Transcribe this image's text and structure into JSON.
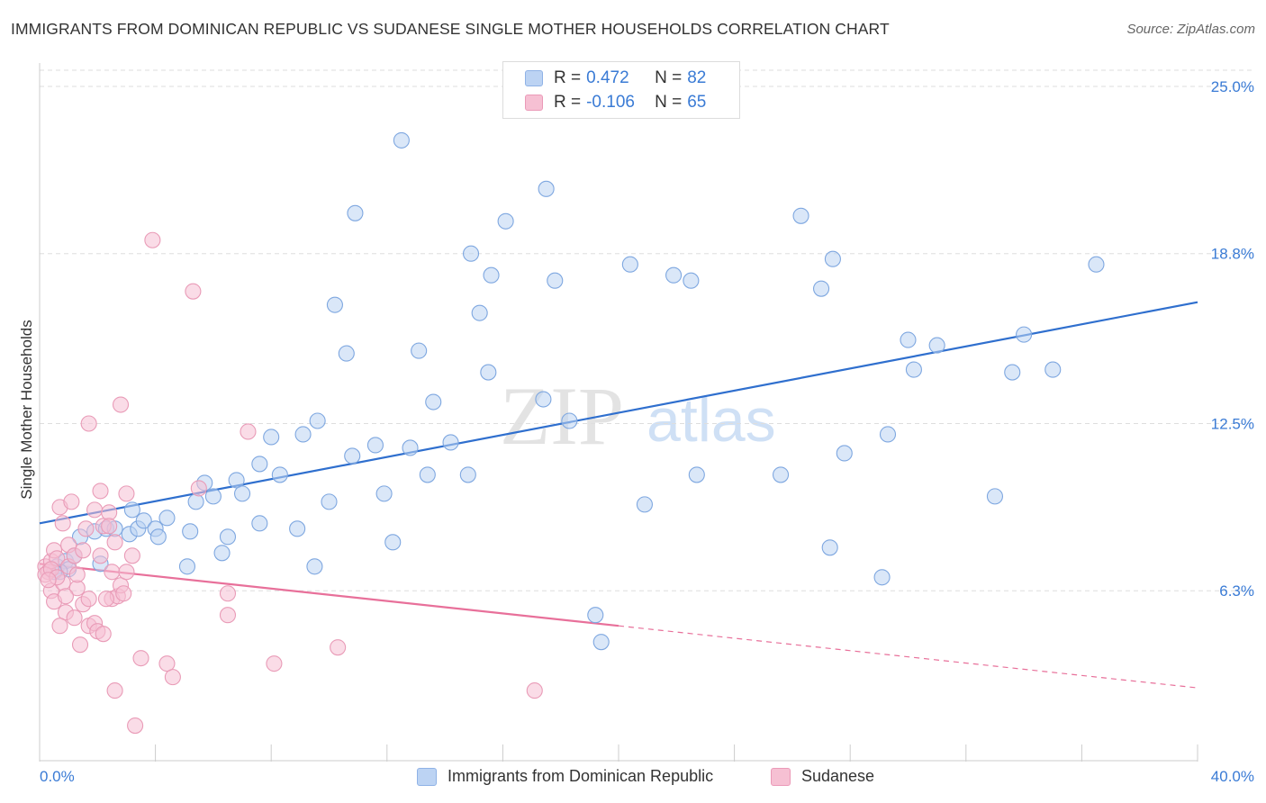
{
  "title": "IMMIGRANTS FROM DOMINICAN REPUBLIC VS SUDANESE SINGLE MOTHER HOUSEHOLDS CORRELATION CHART",
  "source": "Source: ZipAtlas.com",
  "watermark": {
    "zip": "ZIP",
    "atlas": "atlas"
  },
  "colors": {
    "blue": "#3a7bd5",
    "blue_fill": "#bcd3f3",
    "pink": "#e8709a",
    "pink_fill": "#f6c0d3",
    "grid": "#dddddd"
  },
  "legend": {
    "r_label": "R =",
    "n_label": "N =",
    "rows": [
      {
        "r": "0.472",
        "n": "82"
      },
      {
        "r": "-0.106",
        "n": "65"
      }
    ]
  },
  "chart_data": {
    "type": "scatter",
    "xlabel": "",
    "ylabel": "Single Mother Households",
    "x_tick_labels": [
      "0.0%",
      "40.0%"
    ],
    "y_tick_labels": [
      "6.3%",
      "12.5%",
      "18.8%",
      "25.0%"
    ],
    "xlim": [
      0,
      40
    ],
    "ylim": [
      0,
      25.6
    ],
    "yticks": [
      6.3,
      12.5,
      18.8,
      25.0
    ],
    "grid": true,
    "legend_position": "top-center",
    "series": [
      {
        "name": "Immigrants from Dominican Republic",
        "color": "#3a7bd5",
        "R": 0.472,
        "N": 82,
        "trend": {
          "x": [
            0,
            40
          ],
          "y": [
            8.8,
            17.0
          ]
        },
        "points": [
          [
            0.6,
            7.2
          ],
          [
            0.9,
            7.4
          ],
          [
            1.0,
            7.1
          ],
          [
            0.7,
            7.0
          ],
          [
            1.2,
            7.6
          ],
          [
            1.4,
            8.3
          ],
          [
            1.9,
            8.5
          ],
          [
            2.1,
            7.3
          ],
          [
            2.3,
            8.6
          ],
          [
            2.6,
            8.6
          ],
          [
            3.1,
            8.4
          ],
          [
            3.4,
            8.6
          ],
          [
            3.2,
            9.3
          ],
          [
            3.6,
            8.9
          ],
          [
            4.0,
            8.6
          ],
          [
            4.4,
            9.0
          ],
          [
            4.1,
            8.3
          ],
          [
            5.1,
            7.2
          ],
          [
            5.2,
            8.5
          ],
          [
            5.4,
            9.6
          ],
          [
            5.7,
            10.3
          ],
          [
            6.0,
            9.8
          ],
          [
            6.3,
            7.7
          ],
          [
            6.5,
            8.3
          ],
          [
            6.8,
            10.4
          ],
          [
            7.0,
            9.9
          ],
          [
            7.6,
            8.8
          ],
          [
            7.6,
            11.0
          ],
          [
            8.0,
            12.0
          ],
          [
            8.3,
            10.6
          ],
          [
            8.9,
            8.6
          ],
          [
            9.1,
            12.1
          ],
          [
            9.5,
            7.2
          ],
          [
            9.6,
            12.6
          ],
          [
            10.0,
            9.6
          ],
          [
            10.2,
            16.9
          ],
          [
            10.6,
            15.1
          ],
          [
            10.8,
            11.3
          ],
          [
            10.9,
            20.3
          ],
          [
            11.6,
            11.7
          ],
          [
            11.9,
            9.9
          ],
          [
            12.2,
            8.1
          ],
          [
            12.5,
            23.0
          ],
          [
            12.8,
            11.6
          ],
          [
            13.1,
            15.2
          ],
          [
            13.4,
            10.6
          ],
          [
            13.6,
            13.3
          ],
          [
            14.2,
            11.8
          ],
          [
            14.8,
            10.6
          ],
          [
            14.9,
            18.8
          ],
          [
            15.2,
            16.6
          ],
          [
            15.5,
            14.4
          ],
          [
            15.6,
            18.0
          ],
          [
            16.1,
            20.0
          ],
          [
            17.4,
            13.4
          ],
          [
            17.5,
            21.2
          ],
          [
            17.8,
            17.8
          ],
          [
            18.3,
            12.6
          ],
          [
            19.2,
            5.4
          ],
          [
            19.4,
            4.4
          ],
          [
            20.4,
            18.4
          ],
          [
            20.9,
            9.5
          ],
          [
            21.9,
            18.0
          ],
          [
            22.5,
            17.8
          ],
          [
            22.7,
            10.6
          ],
          [
            25.6,
            10.6
          ],
          [
            26.3,
            20.2
          ],
          [
            27.3,
            7.9
          ],
          [
            27.4,
            18.6
          ],
          [
            27.0,
            17.5
          ],
          [
            27.8,
            11.4
          ],
          [
            29.1,
            6.8
          ],
          [
            29.3,
            12.1
          ],
          [
            30.0,
            15.6
          ],
          [
            30.2,
            14.5
          ],
          [
            31.0,
            15.4
          ],
          [
            33.0,
            9.8
          ],
          [
            33.6,
            14.4
          ],
          [
            34.0,
            15.8
          ],
          [
            35.0,
            14.5
          ],
          [
            36.5,
            18.4
          ],
          [
            0.5,
            7.0
          ]
        ]
      },
      {
        "name": "Sudanese",
        "color": "#e8709a",
        "R": -0.106,
        "N": 65,
        "trend": {
          "x": [
            0,
            20
          ],
          "y": [
            7.3,
            5.0
          ]
        },
        "trend_dashed": {
          "x": [
            20,
            40
          ],
          "y": [
            5.0,
            2.7
          ]
        },
        "points": [
          [
            0.2,
            7.2
          ],
          [
            0.3,
            7.0
          ],
          [
            0.4,
            7.4
          ],
          [
            0.2,
            6.9
          ],
          [
            0.5,
            7.8
          ],
          [
            0.6,
            7.5
          ],
          [
            0.7,
            9.4
          ],
          [
            0.8,
            8.8
          ],
          [
            0.4,
            6.3
          ],
          [
            0.5,
            5.9
          ],
          [
            0.8,
            6.6
          ],
          [
            0.9,
            5.5
          ],
          [
            1.0,
            8.0
          ],
          [
            1.0,
            7.2
          ],
          [
            1.1,
            9.6
          ],
          [
            1.2,
            7.6
          ],
          [
            1.3,
            6.4
          ],
          [
            1.3,
            6.9
          ],
          [
            1.4,
            4.3
          ],
          [
            1.5,
            7.8
          ],
          [
            1.5,
            5.8
          ],
          [
            1.6,
            8.6
          ],
          [
            1.7,
            6.0
          ],
          [
            1.7,
            5.0
          ],
          [
            1.7,
            12.5
          ],
          [
            1.9,
            9.3
          ],
          [
            1.9,
            5.1
          ],
          [
            2.0,
            4.8
          ],
          [
            2.1,
            7.6
          ],
          [
            2.1,
            10.0
          ],
          [
            2.2,
            8.7
          ],
          [
            2.2,
            4.7
          ],
          [
            2.4,
            9.2
          ],
          [
            2.4,
            8.7
          ],
          [
            2.5,
            7.0
          ],
          [
            2.5,
            6.0
          ],
          [
            2.6,
            8.1
          ],
          [
            2.6,
            2.6
          ],
          [
            2.7,
            6.1
          ],
          [
            2.8,
            13.2
          ],
          [
            2.8,
            6.5
          ],
          [
            3.0,
            7.0
          ],
          [
            3.0,
            9.9
          ],
          [
            3.2,
            7.6
          ],
          [
            3.3,
            1.3
          ],
          [
            3.5,
            3.8
          ],
          [
            3.9,
            19.3
          ],
          [
            4.4,
            3.6
          ],
          [
            4.6,
            3.1
          ],
          [
            5.3,
            17.4
          ],
          [
            5.5,
            10.1
          ],
          [
            6.5,
            5.4
          ],
          [
            6.5,
            6.2
          ],
          [
            7.2,
            12.2
          ],
          [
            8.1,
            3.6
          ],
          [
            10.3,
            4.2
          ],
          [
            17.1,
            2.6
          ],
          [
            0.4,
            7.1
          ],
          [
            0.6,
            6.8
          ],
          [
            0.3,
            6.7
          ],
          [
            0.9,
            6.1
          ],
          [
            1.2,
            5.3
          ],
          [
            0.7,
            5.0
          ],
          [
            2.9,
            6.2
          ],
          [
            2.3,
            6.0
          ]
        ]
      }
    ]
  }
}
